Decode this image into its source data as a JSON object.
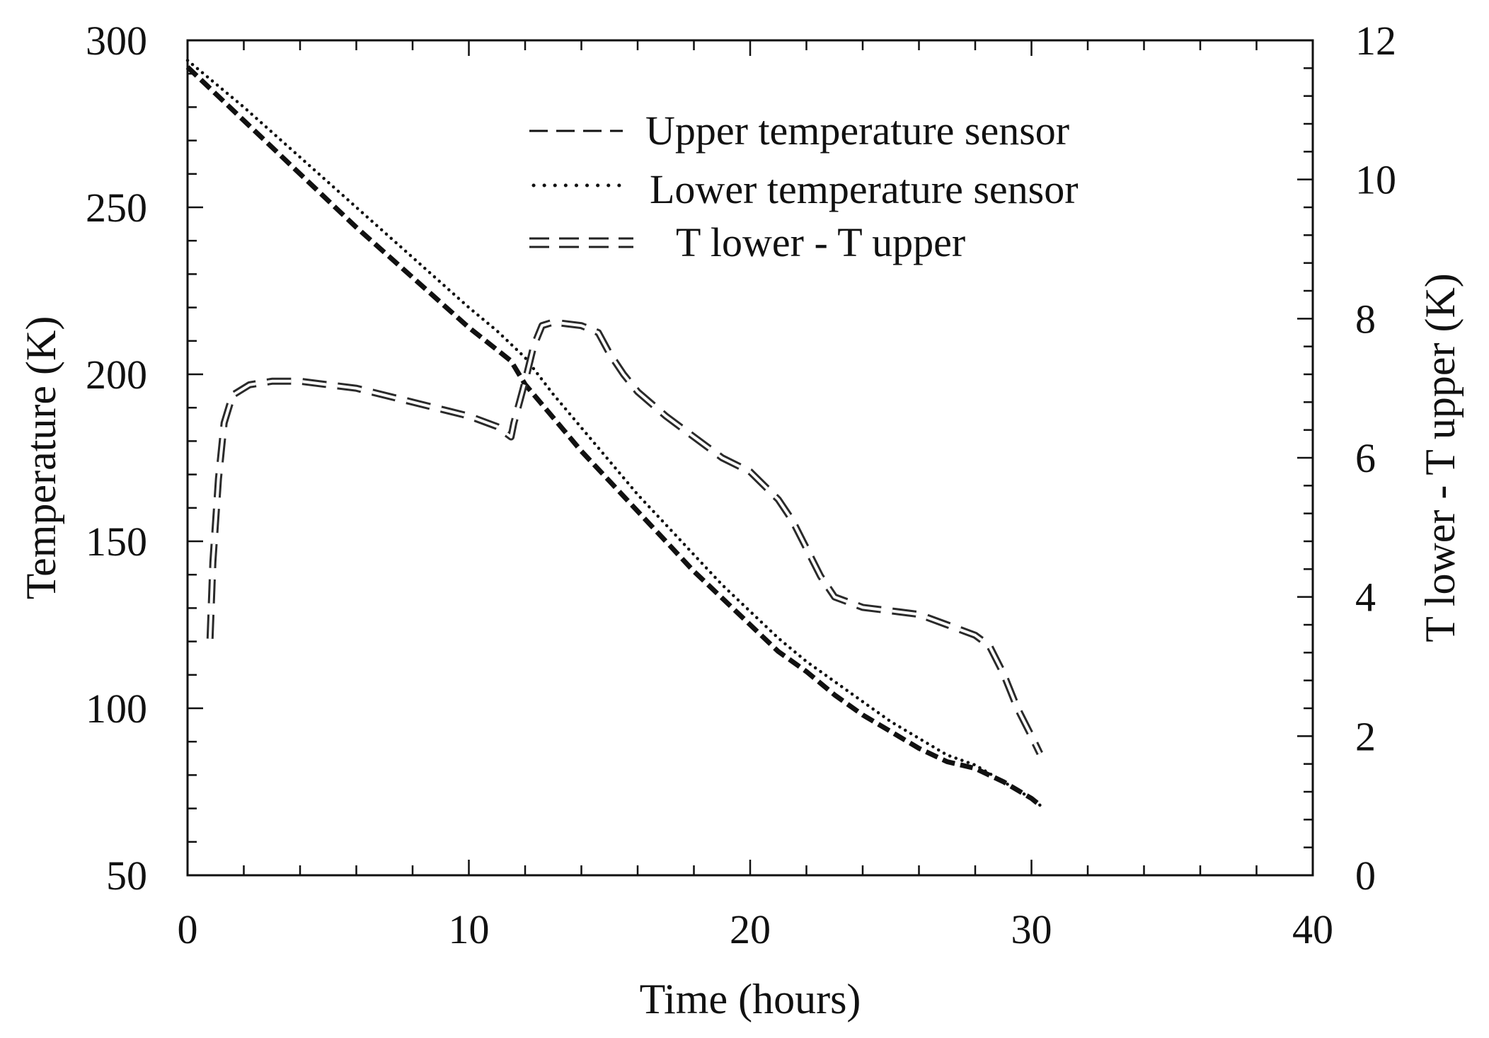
{
  "chart_data": {
    "type": "line",
    "title": "",
    "xlabel": "Time (hours)",
    "ylabel": "Temperature (K)",
    "y2label": "T lower - T upper (K)",
    "xlim": [
      0,
      40
    ],
    "ylim": [
      50,
      300
    ],
    "y2lim": [
      0,
      12
    ],
    "xticks": [
      "0",
      "10",
      "20",
      "30",
      "40"
    ],
    "yticks": [
      "50",
      "100",
      "150",
      "200",
      "250",
      "300"
    ],
    "y2ticks": [
      "0",
      "2",
      "4",
      "6",
      "8",
      "10",
      "12"
    ],
    "grid": false,
    "legend_position": "top-right",
    "legend": [
      {
        "marker": "– – –",
        "label": "Upper temperature sensor"
      },
      {
        "marker": "·······",
        "label": "Lower temperature sensor"
      },
      {
        "marker": "= = =",
        "label": "T lower - T upper"
      }
    ],
    "series": [
      {
        "name": "Upper temperature sensor",
        "axis": "left",
        "style": "dashed-bold",
        "x": [
          0,
          2,
          4,
          6,
          8,
          10,
          11.5,
          12,
          13,
          14,
          15,
          16,
          17,
          18,
          19,
          20,
          21,
          22,
          23,
          24,
          25,
          26,
          27,
          27.5,
          28,
          29,
          30,
          30.3
        ],
        "y": [
          292,
          276,
          260,
          244,
          229,
          214,
          204,
          197,
          187,
          177,
          168,
          159,
          150,
          141,
          133,
          125,
          117,
          111,
          104,
          98,
          93,
          88,
          84,
          83,
          82,
          78,
          73,
          71
        ]
      },
      {
        "name": "Lower temperature sensor",
        "axis": "left",
        "style": "dotted",
        "x": [
          0,
          2,
          4,
          6,
          8,
          10,
          11,
          12,
          13,
          14,
          15,
          16,
          17,
          18,
          19,
          20,
          21,
          22,
          23,
          24,
          25,
          26,
          27,
          28,
          29,
          30,
          30.3
        ],
        "y": [
          294,
          280,
          265,
          250,
          235,
          220,
          213,
          205,
          194,
          184,
          174,
          164,
          155,
          146,
          137,
          129,
          121,
          114,
          108,
          102,
          96,
          91,
          86,
          83,
          78,
          73,
          71
        ]
      },
      {
        "name": "T lower - T upper",
        "axis": "right",
        "style": "double-dashed",
        "x": [
          0.8,
          0.9,
          1.1,
          1.3,
          1.6,
          2.2,
          3,
          4,
          5,
          6,
          7,
          8,
          9,
          10,
          11,
          11.5,
          11.6,
          11.8,
          12,
          12.3,
          12.6,
          13,
          14,
          14.6,
          15,
          15.5,
          16,
          17,
          18,
          19,
          20,
          20.5,
          21,
          21.5,
          22,
          22.5,
          23,
          24,
          25,
          26,
          27,
          28,
          28.5,
          29,
          29.5,
          30,
          30.3
        ],
        "y": [
          3.4,
          4.5,
          5.7,
          6.5,
          6.9,
          7.05,
          7.1,
          7.1,
          7.05,
          7.0,
          6.9,
          6.8,
          6.7,
          6.6,
          6.45,
          6.3,
          6.5,
          6.8,
          7.1,
          7.6,
          7.9,
          7.95,
          7.9,
          7.8,
          7.5,
          7.2,
          6.95,
          6.6,
          6.3,
          6.0,
          5.8,
          5.6,
          5.4,
          5.1,
          4.7,
          4.3,
          4.0,
          3.85,
          3.8,
          3.75,
          3.6,
          3.45,
          3.3,
          2.9,
          2.4,
          2.0,
          1.75
        ]
      }
    ]
  }
}
